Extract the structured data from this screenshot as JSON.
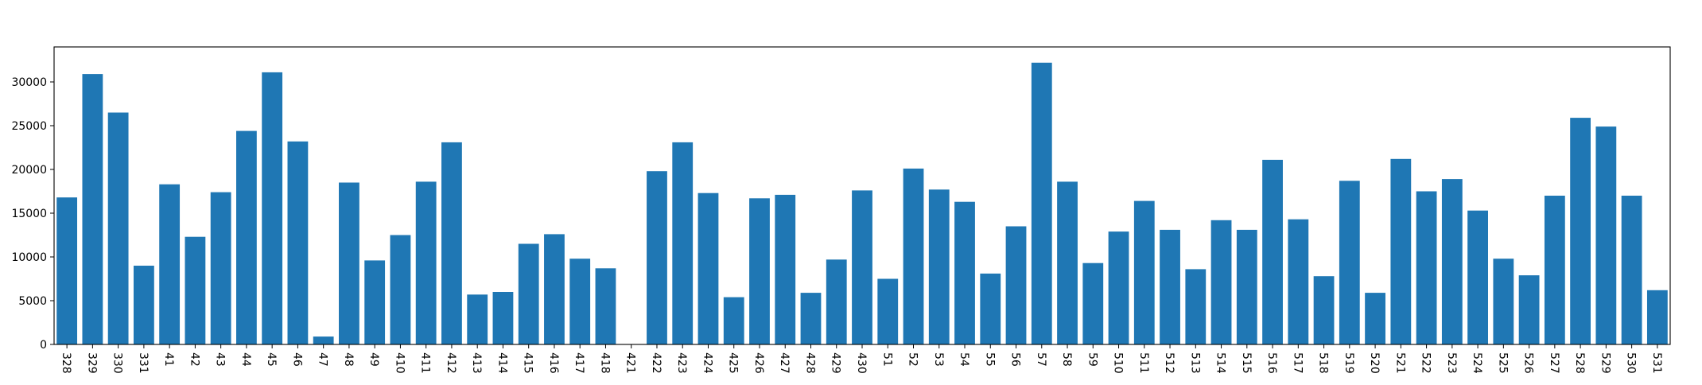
{
  "chart_data": {
    "type": "bar",
    "title": "",
    "xlabel": "",
    "ylabel": "",
    "ylim": [
      0,
      34000
    ],
    "yticks": [
      0,
      5000,
      10000,
      15000,
      20000,
      25000,
      30000
    ],
    "grid": false,
    "bar_color": "#1f77b4",
    "categories": [
      "328",
      "329",
      "330",
      "331",
      "41",
      "42",
      "43",
      "44",
      "45",
      "46",
      "47",
      "48",
      "49",
      "410",
      "411",
      "412",
      "413",
      "414",
      "415",
      "416",
      "417",
      "418",
      "421",
      "422",
      "423",
      "424",
      "425",
      "426",
      "427",
      "428",
      "429",
      "430",
      "51",
      "52",
      "53",
      "54",
      "55",
      "56",
      "57",
      "58",
      "59",
      "510",
      "511",
      "512",
      "513",
      "514",
      "515",
      "516",
      "517",
      "518",
      "519",
      "520",
      "521",
      "522",
      "523",
      "524",
      "525",
      "526",
      "527",
      "528",
      "529",
      "530",
      "531"
    ],
    "values": [
      16800,
      30900,
      26500,
      9000,
      18300,
      12300,
      17400,
      24400,
      31100,
      23200,
      900,
      18500,
      9600,
      12500,
      18600,
      23100,
      5700,
      6000,
      11500,
      12600,
      9800,
      8700,
      0,
      19800,
      23100,
      17300,
      5400,
      16700,
      17100,
      5900,
      9700,
      17600,
      7500,
      20100,
      17700,
      16300,
      8100,
      13500,
      32200,
      18600,
      9300,
      12900,
      16400,
      13100,
      8600,
      14200,
      13100,
      21100,
      14300,
      7800,
      18700,
      5900,
      21200,
      17500,
      18900,
      15300,
      9800,
      7900,
      17000,
      25900,
      24900,
      17000,
      6200
    ]
  }
}
